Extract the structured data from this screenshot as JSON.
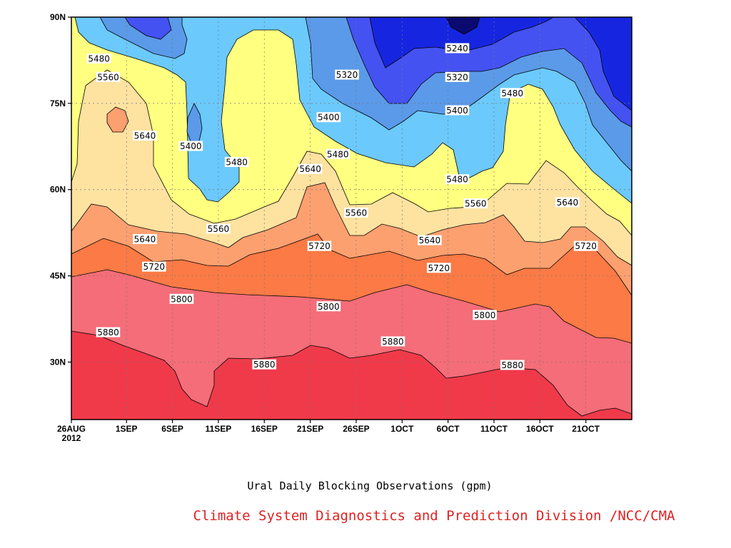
{
  "chart_data": {
    "type": "contour",
    "title": "Ural Daily Blocking Observations (gpm)",
    "credit": "Climate System Diagnostics and Prediction Division /NCC/CMA",
    "credit_color": "#dd2222",
    "x_range": [
      "2012-08-26",
      "2012-10-26"
    ],
    "y_range": [
      20,
      90
    ],
    "x_ticks": [
      {
        "label": "26AUG",
        "sub": "2012",
        "day": 0
      },
      {
        "label": "1SEP",
        "day": 6
      },
      {
        "label": "6SEP",
        "day": 11
      },
      {
        "label": "11SEP",
        "day": 16
      },
      {
        "label": "16SEP",
        "day": 21
      },
      {
        "label": "21SEP",
        "day": 26
      },
      {
        "label": "26SEP",
        "day": 31
      },
      {
        "label": "1OCT",
        "day": 36
      },
      {
        "label": "6OCT",
        "day": 41
      },
      {
        "label": "11OCT",
        "day": 46
      },
      {
        "label": "16OCT",
        "day": 51
      },
      {
        "label": "21OCT",
        "day": 56
      }
    ],
    "y_ticks": [
      {
        "label": "30N",
        "lat": 30
      },
      {
        "label": "45N",
        "lat": 45
      },
      {
        "label": "60N",
        "lat": 60
      },
      {
        "label": "75N",
        "lat": 75
      },
      {
        "label": "90N",
        "lat": 90
      }
    ],
    "grid": true,
    "band_colors": {
      "above_5880": "#f03a4a",
      "5800_5880": "#f46d78",
      "5720_5800": "#fb7a45",
      "5640_5720": "#fda070",
      "5560_5640": "#fde2a0",
      "5480_5560": "#ffff80",
      "5400_5480": "#6bc9fb",
      "5320_5400": "#5a9ae9",
      "5240_5320": "#4452f1",
      "below_5240": "#1626e0",
      "below_5160": "#0a0a70"
    },
    "contours": [
      {
        "level": 5880,
        "labels": [
          {
            "day": 4,
            "lat": 35.2
          },
          {
            "day": 21,
            "lat": 29.6
          },
          {
            "day": 35,
            "lat": 33.6
          },
          {
            "day": 48,
            "lat": 29.5
          }
        ]
      },
      {
        "level": 5800,
        "labels": [
          {
            "day": 12,
            "lat": 41.0
          },
          {
            "day": 28,
            "lat": 39.7
          },
          {
            "day": 45,
            "lat": 38.2
          }
        ]
      },
      {
        "level": 5720,
        "labels": [
          {
            "day": 9,
            "lat": 46.6
          },
          {
            "day": 27,
            "lat": 50.2
          },
          {
            "day": 40,
            "lat": 46.4
          },
          {
            "day": 56,
            "lat": 50.2
          }
        ]
      },
      {
        "level": 5640,
        "labels": [
          {
            "day": 8,
            "lat": 69.4
          },
          {
            "day": 8,
            "lat": 51.4
          },
          {
            "day": 26,
            "lat": 63.6
          },
          {
            "day": 39,
            "lat": 51.2
          },
          {
            "day": 54,
            "lat": 57.8
          }
        ]
      },
      {
        "level": 5560,
        "labels": [
          {
            "day": 4,
            "lat": 79.6
          },
          {
            "day": 16,
            "lat": 53.2
          },
          {
            "day": 31,
            "lat": 56.0
          },
          {
            "day": 44,
            "lat": 57.6
          }
        ]
      },
      {
        "level": 5480,
        "labels": [
          {
            "day": 3,
            "lat": 82.8
          },
          {
            "day": 18,
            "lat": 64.8
          },
          {
            "day": 29,
            "lat": 66.2
          },
          {
            "day": 42,
            "lat": 61.8
          },
          {
            "day": 48,
            "lat": 76.8
          }
        ]
      },
      {
        "level": 5400,
        "labels": [
          {
            "day": 13,
            "lat": 67.6
          },
          {
            "day": 28,
            "lat": 72.6
          },
          {
            "day": 42,
            "lat": 73.8
          }
        ]
      },
      {
        "level": 5320,
        "labels": [
          {
            "day": 30,
            "lat": 80.0
          },
          {
            "day": 42,
            "lat": 79.6
          }
        ]
      },
      {
        "level": 5240,
        "labels": [
          {
            "day": 42,
            "lat": 84.6
          }
        ]
      }
    ]
  }
}
